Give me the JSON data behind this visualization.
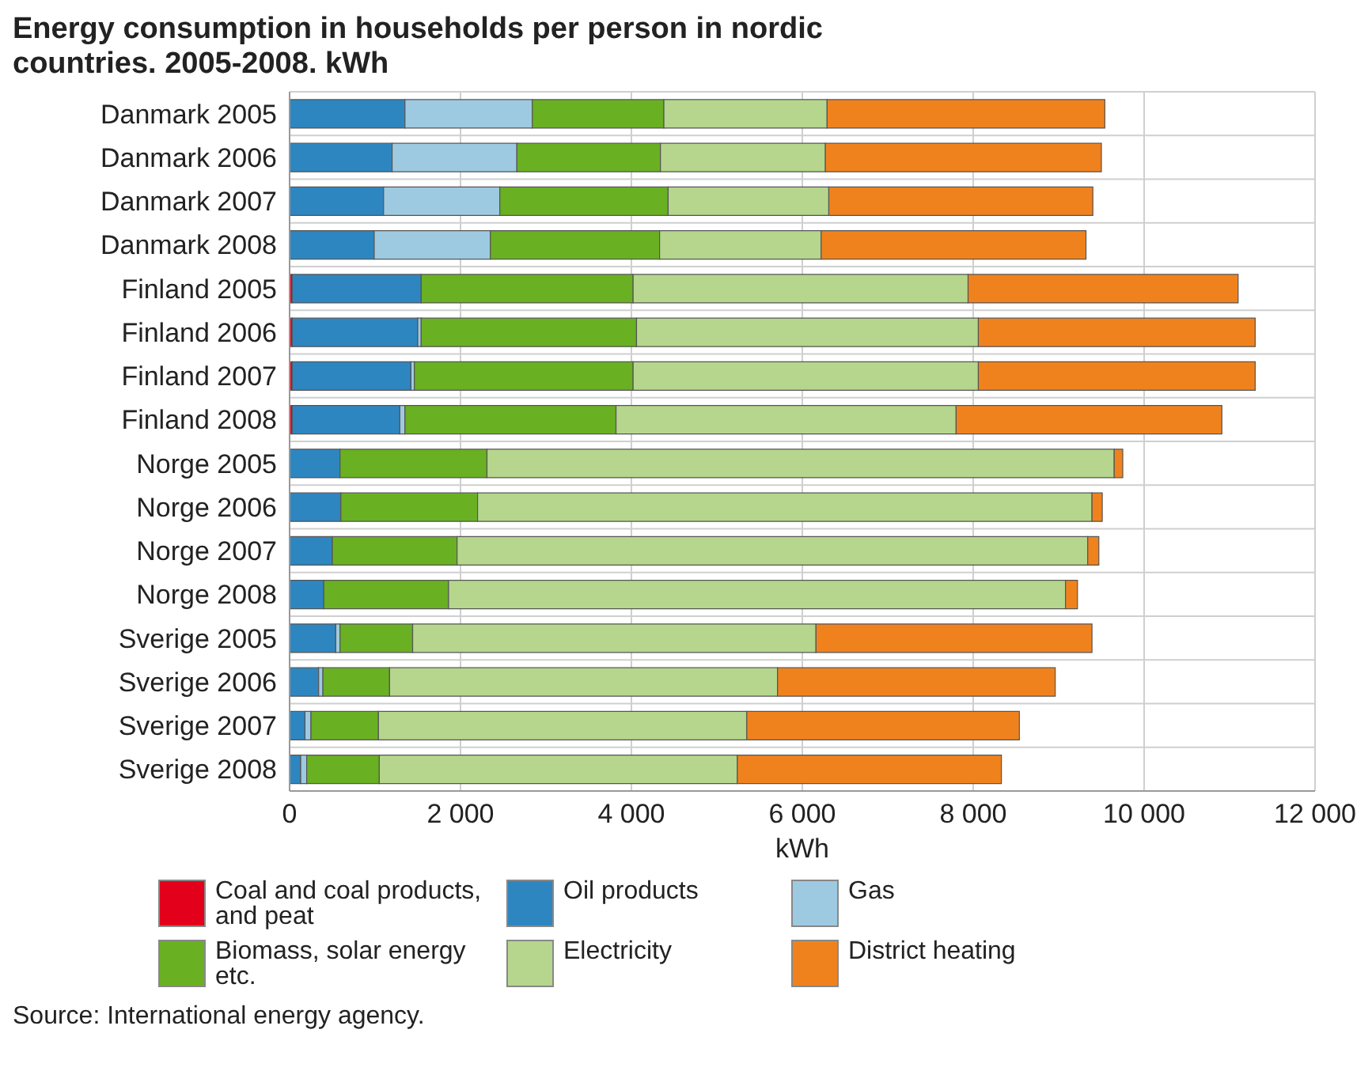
{
  "chart_data": {
    "type": "bar",
    "orientation": "horizontal",
    "stacked": true,
    "title": "Energy consumption in households per person in nordic countries. 2005-2008. kWh",
    "xlabel": "kWh",
    "categories": [
      "Danmark 2005",
      "Danmark 2006",
      "Danmark 2007",
      "Danmark 2008",
      "Finland 2005",
      "Finland 2006",
      "Finland 2007",
      "Finland 2008",
      "Norge 2005",
      "Norge 2006",
      "Norge 2007",
      "Norge 2008",
      "Sverige 2005",
      "Sverige 2006",
      "Sverige 2007",
      "Sverige 2008"
    ],
    "series": [
      {
        "name": "Coal and coal products, and peat",
        "color": "#e2001a",
        "values": [
          0,
          0,
          0,
          0,
          30,
          30,
          30,
          30,
          0,
          0,
          0,
          0,
          0,
          0,
          0,
          0
        ]
      },
      {
        "name": "Oil products",
        "color": "#2e86c1",
        "values": [
          1350,
          1200,
          1100,
          990,
          1510,
          1470,
          1390,
          1260,
          590,
          600,
          500,
          400,
          540,
          340,
          180,
          130
        ]
      },
      {
        "name": "Gas",
        "color": "#9ecae1",
        "values": [
          1490,
          1460,
          1360,
          1360,
          0,
          40,
          40,
          60,
          0,
          0,
          0,
          0,
          50,
          50,
          70,
          70
        ]
      },
      {
        "name": "Biomass, solar energy etc.",
        "color": "#6ab023",
        "values": [
          1540,
          1680,
          1970,
          1980,
          2480,
          2520,
          2560,
          2470,
          1720,
          1600,
          1460,
          1460,
          850,
          780,
          790,
          850
        ]
      },
      {
        "name": "Electricity",
        "color": "#b5d68c",
        "values": [
          1910,
          1930,
          1880,
          1890,
          3920,
          4000,
          4040,
          3980,
          7340,
          7190,
          7380,
          7220,
          4720,
          4540,
          4310,
          4190
        ]
      },
      {
        "name": "District heating",
        "color": "#f0821e",
        "values": [
          3250,
          3230,
          3090,
          3100,
          3160,
          3240,
          3240,
          3110,
          100,
          120,
          130,
          140,
          3230,
          3250,
          3190,
          3090
        ]
      }
    ],
    "xlim": [
      0,
      12000
    ],
    "xticks": [
      {
        "value": 0,
        "label": "0"
      },
      {
        "value": 2000,
        "label": "2 000"
      },
      {
        "value": 4000,
        "label": "4 000"
      },
      {
        "value": 6000,
        "label": "6 000"
      },
      {
        "value": 8000,
        "label": "8 000"
      },
      {
        "value": 10000,
        "label": "10 000"
      },
      {
        "value": 12000,
        "label": "12 000"
      }
    ],
    "grid": true,
    "legend": "bottom",
    "annotations": [
      "Source: International energy agency."
    ]
  }
}
